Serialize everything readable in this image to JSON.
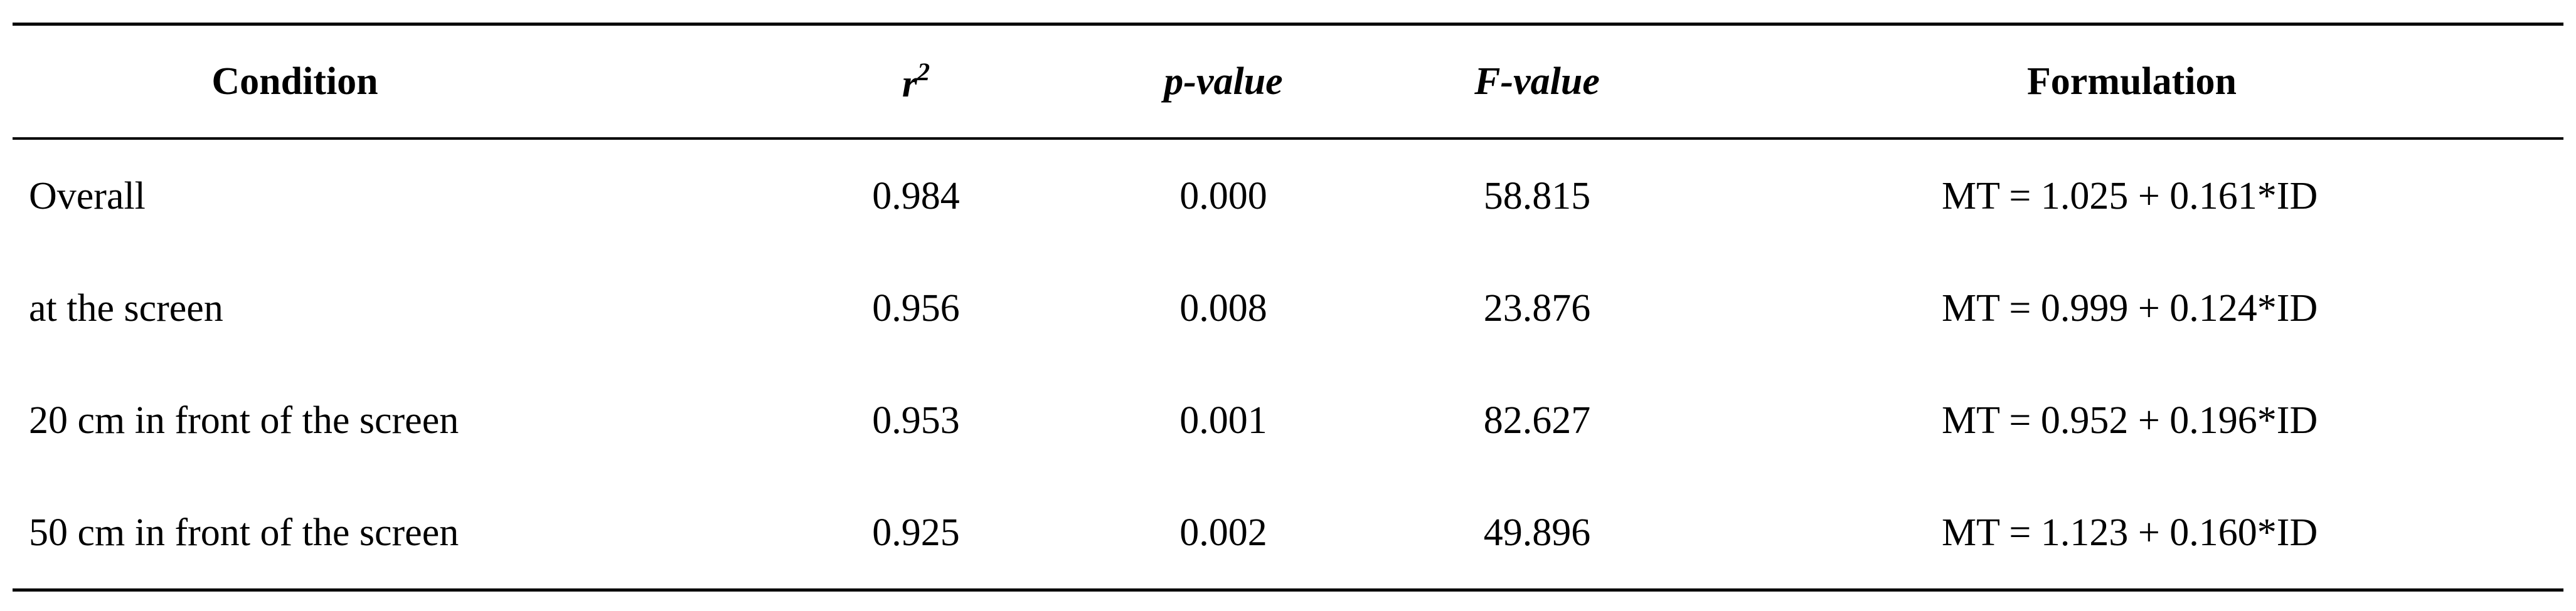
{
  "table": {
    "headers": {
      "condition": "Condition",
      "r2_base": "r",
      "r2_sup": "2",
      "p_value": "p-value",
      "f_value": "F-value",
      "formulation": "Formulation"
    },
    "rows": [
      {
        "condition": "Overall",
        "r2": "0.984",
        "p": "0.000",
        "f": "58.815",
        "formulation": "MT = 1.025 + 0.161*ID"
      },
      {
        "condition": "at the screen",
        "r2": "0.956",
        "p": "0.008",
        "f": "23.876",
        "formulation": "MT = 0.999 + 0.124*ID"
      },
      {
        "condition": "20 cm in front of the screen",
        "r2": "0.953",
        "p": "0.001",
        "f": "82.627",
        "formulation": "MT = 0.952 + 0.196*ID"
      },
      {
        "condition": "50 cm in front of the screen",
        "r2": "0.925",
        "p": "0.002",
        "f": "49.896",
        "formulation": "MT = 1.123 + 0.160*ID"
      }
    ]
  }
}
